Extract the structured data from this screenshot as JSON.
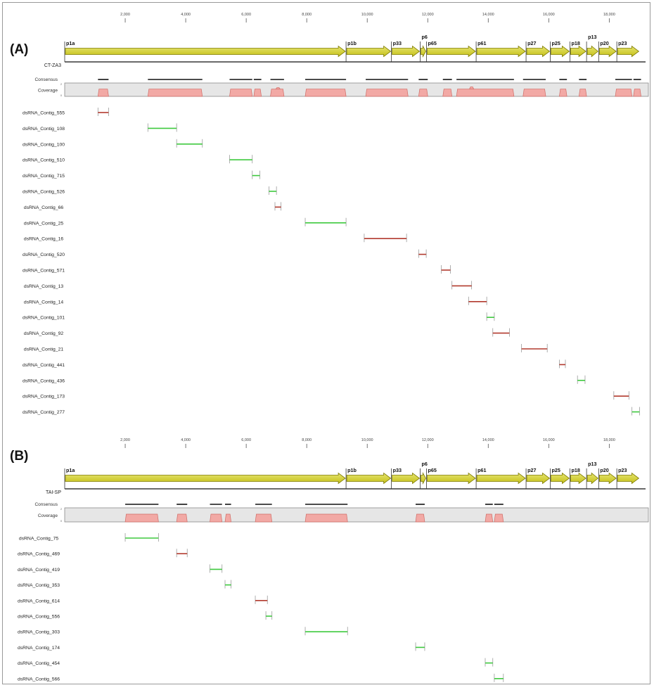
{
  "scale": {
    "genome_max": 19200,
    "ticks": [
      {
        "value": 2000,
        "label": "2,000"
      },
      {
        "value": 4000,
        "label": "4,000"
      },
      {
        "value": 6000,
        "label": "6,000"
      },
      {
        "value": 8000,
        "label": "8,000"
      },
      {
        "value": 10000,
        "label": "10,000"
      },
      {
        "value": 12000,
        "label": "12,000"
      },
      {
        "value": 14000,
        "label": "14,000"
      },
      {
        "value": 16000,
        "label": "16,000"
      },
      {
        "value": 18000,
        "label": "18,000"
      }
    ]
  },
  "track_labels": {
    "consensus": "Consensus",
    "coverage": "Coverage",
    "coverage_max": "2",
    "coverage_min": "0"
  },
  "colors": {
    "gene_fill": "#c4c018",
    "gene_fill_light": "#e6e470",
    "gene_stroke": "#7d7a00",
    "coverage_fill": "#f2a9a5",
    "coverage_stroke": "#cf6c66",
    "coverage_bg": "#e6e6e6",
    "red_contig": "#b23a2e",
    "green_contig": "#3ec93e",
    "bracket": "#9a9a9a",
    "consensus_bar": "#111111"
  },
  "panels": [
    {
      "id": "A",
      "panel_label": "(A)",
      "genome_label": "CT-ZA3",
      "genes": [
        {
          "name": "p1a",
          "start": 0,
          "end": 9300
        },
        {
          "name": "p1b",
          "start": 9300,
          "end": 10800
        },
        {
          "name": "p33",
          "start": 10800,
          "end": 11750
        },
        {
          "name": "p6",
          "start": 11750,
          "end": 11960
        },
        {
          "name": "p65",
          "start": 11960,
          "end": 13600
        },
        {
          "name": "p61",
          "start": 13600,
          "end": 15250
        },
        {
          "name": "p27",
          "start": 15250,
          "end": 16050
        },
        {
          "name": "p25",
          "start": 16050,
          "end": 16700
        },
        {
          "name": "p18",
          "start": 16700,
          "end": 17250
        },
        {
          "name": "p13",
          "start": 17250,
          "end": 17650
        },
        {
          "name": "p20",
          "start": 17650,
          "end": 18250
        },
        {
          "name": "p23",
          "start": 18250,
          "end": 19000
        }
      ],
      "consensus": [
        [
          1100,
          1450
        ],
        [
          2750,
          4550
        ],
        [
          5450,
          6200
        ],
        [
          6250,
          6500
        ],
        [
          6800,
          7250
        ],
        [
          7950,
          9300
        ],
        [
          9950,
          11350
        ],
        [
          11700,
          12000
        ],
        [
          12500,
          12800
        ],
        [
          12950,
          14850
        ],
        [
          15150,
          15900
        ],
        [
          16350,
          16600
        ],
        [
          17000,
          17250
        ],
        [
          18200,
          18750
        ],
        [
          18800,
          19050
        ]
      ],
      "coverage": [
        [
          1100,
          1450,
          0.55
        ],
        [
          2750,
          4550,
          0.55
        ],
        [
          5450,
          6200,
          0.55
        ],
        [
          6250,
          6500,
          0.55
        ],
        [
          6800,
          7250,
          0.55
        ],
        [
          7950,
          9300,
          0.55
        ],
        [
          9950,
          11350,
          0.55
        ],
        [
          11700,
          12000,
          0.55
        ],
        [
          12500,
          12800,
          0.55
        ],
        [
          12950,
          14850,
          0.55
        ],
        [
          15150,
          15900,
          0.55
        ],
        [
          16350,
          16600,
          0.55
        ],
        [
          17000,
          17250,
          0.55
        ],
        [
          18200,
          18750,
          0.55
        ],
        [
          18800,
          19050,
          0.55
        ]
      ],
      "coverage_peaks": [
        [
          7050,
          1.2
        ],
        [
          13450,
          1.3
        ]
      ],
      "contigs": [
        {
          "name": "dsRNA_Contig_555",
          "start": 1100,
          "end": 1450,
          "color": "red"
        },
        {
          "name": "dsRNA_Contig_108",
          "start": 2750,
          "end": 3700,
          "color": "green"
        },
        {
          "name": "dsRNA_Contig_100",
          "start": 3700,
          "end": 4550,
          "color": "green"
        },
        {
          "name": "dsRNA_Contig_510",
          "start": 5450,
          "end": 6200,
          "color": "green"
        },
        {
          "name": "dsRNA_Contig_715",
          "start": 6200,
          "end": 6450,
          "color": "green"
        },
        {
          "name": "dsRNA_Contig_526",
          "start": 6750,
          "end": 7000,
          "color": "green"
        },
        {
          "name": "dsRNA_Contig_66",
          "start": 6950,
          "end": 7150,
          "color": "red"
        },
        {
          "name": "dsRNA_Contig_25",
          "start": 7950,
          "end": 9300,
          "color": "green"
        },
        {
          "name": "dsRNA_Contig_16",
          "start": 9900,
          "end": 11300,
          "color": "red"
        },
        {
          "name": "dsRNA_Contig_520",
          "start": 11700,
          "end": 11950,
          "color": "red"
        },
        {
          "name": "dsRNA_Contig_571",
          "start": 12450,
          "end": 12750,
          "color": "red"
        },
        {
          "name": "dsRNA_Contig_13",
          "start": 12800,
          "end": 13450,
          "color": "red"
        },
        {
          "name": "dsRNA_Contig_14",
          "start": 13350,
          "end": 13950,
          "color": "red"
        },
        {
          "name": "dsRNA_Contig_101",
          "start": 13950,
          "end": 14200,
          "color": "green"
        },
        {
          "name": "dsRNA_Contig_92",
          "start": 14150,
          "end": 14700,
          "color": "red"
        },
        {
          "name": "dsRNA_Contig_21",
          "start": 15100,
          "end": 15950,
          "color": "red"
        },
        {
          "name": "dsRNA_Contig_441",
          "start": 16350,
          "end": 16550,
          "color": "red"
        },
        {
          "name": "dsRNA_Contig_436",
          "start": 16950,
          "end": 17200,
          "color": "green"
        },
        {
          "name": "dsRNA_Contig_173",
          "start": 18150,
          "end": 18650,
          "color": "red"
        },
        {
          "name": "dsRNA_Contig_277",
          "start": 18750,
          "end": 19000,
          "color": "green"
        }
      ]
    },
    {
      "id": "B",
      "panel_label": "(B)",
      "genome_label": "TAI-SP",
      "genes": [
        {
          "name": "p1a",
          "start": 0,
          "end": 9300
        },
        {
          "name": "p1b",
          "start": 9300,
          "end": 10800
        },
        {
          "name": "p33",
          "start": 10800,
          "end": 11750
        },
        {
          "name": "p6",
          "start": 11750,
          "end": 11960
        },
        {
          "name": "p65",
          "start": 11960,
          "end": 13600
        },
        {
          "name": "p61",
          "start": 13600,
          "end": 15250
        },
        {
          "name": "p27",
          "start": 15250,
          "end": 16050
        },
        {
          "name": "p25",
          "start": 16050,
          "end": 16700
        },
        {
          "name": "p18",
          "start": 16700,
          "end": 17250
        },
        {
          "name": "p13",
          "start": 17250,
          "end": 17650
        },
        {
          "name": "p20",
          "start": 17650,
          "end": 18250
        },
        {
          "name": "p23",
          "start": 18250,
          "end": 19000
        }
      ],
      "consensus": [
        [
          2000,
          3100
        ],
        [
          3700,
          4050
        ],
        [
          4800,
          5200
        ],
        [
          5300,
          5500
        ],
        [
          6300,
          6850
        ],
        [
          7950,
          9350
        ],
        [
          11600,
          11900
        ],
        [
          13900,
          14150
        ],
        [
          14200,
          14500
        ]
      ],
      "coverage": [
        [
          2000,
          3100,
          0.55
        ],
        [
          3700,
          4050,
          0.55
        ],
        [
          4800,
          5200,
          0.55
        ],
        [
          5300,
          5500,
          0.55
        ],
        [
          6300,
          6850,
          0.55
        ],
        [
          7950,
          9350,
          0.55
        ],
        [
          11600,
          11900,
          0.55
        ],
        [
          13900,
          14150,
          0.55
        ],
        [
          14200,
          14500,
          0.55
        ]
      ],
      "coverage_peaks": [],
      "contigs": [
        {
          "name": "dsRNA_Contig_75",
          "start": 2000,
          "end": 3100,
          "color": "green"
        },
        {
          "name": "dsRNA_Contig_469",
          "start": 3700,
          "end": 4050,
          "color": "red"
        },
        {
          "name": "dsRNA_Contig_419",
          "start": 4800,
          "end": 5200,
          "color": "green"
        },
        {
          "name": "dsRNA_Contig_353",
          "start": 5300,
          "end": 5500,
          "color": "green"
        },
        {
          "name": "dsRNA_Contig_614",
          "start": 6300,
          "end": 6700,
          "color": "red"
        },
        {
          "name": "dsRNA_Contig_556",
          "start": 6650,
          "end": 6850,
          "color": "green"
        },
        {
          "name": "dsRNA_Contig_303",
          "start": 7950,
          "end": 9350,
          "color": "green"
        },
        {
          "name": "dsRNA_Contig_174",
          "start": 11600,
          "end": 11900,
          "color": "green"
        },
        {
          "name": "dsRNA_Contig_454",
          "start": 13900,
          "end": 14150,
          "color": "green"
        },
        {
          "name": "dsRNA_Contig_566",
          "start": 14200,
          "end": 14500,
          "color": "green"
        }
      ]
    }
  ]
}
